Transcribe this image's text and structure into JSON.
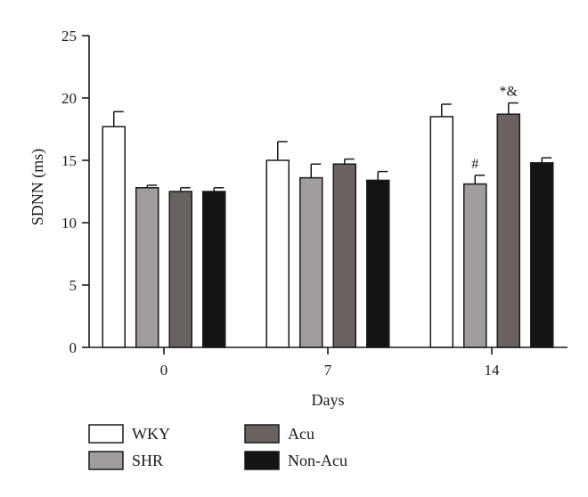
{
  "chart_data": {
    "type": "bar",
    "xlabel": "Days",
    "ylabel": "SDNN (ms)",
    "ylim": [
      0,
      25
    ],
    "yticks": [
      "0",
      "5",
      "10",
      "15",
      "20",
      "25"
    ],
    "categories": [
      "0",
      "7",
      "14"
    ],
    "grid": false,
    "legend_position": "bottom",
    "series": [
      {
        "name": "WKY",
        "color": "#ffffff",
        "values": [
          17.7,
          15.0,
          18.5
        ],
        "errors": [
          1.2,
          1.5,
          1.0
        ]
      },
      {
        "name": "SHR",
        "color": "#a19c9e",
        "values": [
          12.8,
          13.6,
          13.1
        ],
        "errors": [
          0.2,
          1.1,
          0.7
        ]
      },
      {
        "name": "Acu",
        "color": "#69625f",
        "values": [
          12.5,
          14.7,
          18.7
        ],
        "errors": [
          0.3,
          0.4,
          0.9
        ]
      },
      {
        "name": "Non-Acu",
        "color": "#141414",
        "values": [
          12.5,
          13.4,
          14.8
        ],
        "errors": [
          0.3,
          0.7,
          0.4
        ]
      }
    ],
    "annotations": [
      {
        "text": "#",
        "category": "14",
        "series": "SHR"
      },
      {
        "text": "*&",
        "category": "14",
        "series": "Acu"
      }
    ]
  }
}
